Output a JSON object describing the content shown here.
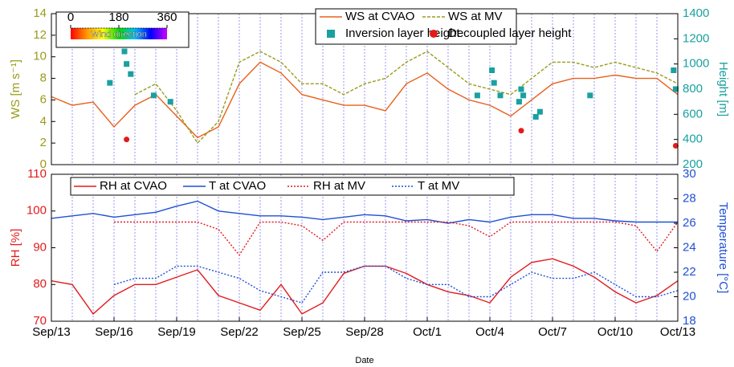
{
  "chart_data": [
    {
      "type": "line",
      "ylabel": "WS [m s⁻¹]",
      "y2label": "Height [m]",
      "ycolor": "#9b9b1b",
      "y2color": "#1aa0a0",
      "xlim": [
        0,
        30
      ],
      "ylim": [
        0,
        14
      ],
      "yticks": [
        0,
        2,
        4,
        6,
        8,
        10,
        12,
        14
      ],
      "y2lim": [
        200,
        1400
      ],
      "y2ticks": [
        200,
        400,
        600,
        800,
        1000,
        1200,
        1400
      ],
      "xgrid": [
        1,
        2,
        3,
        4,
        5,
        6,
        7,
        8,
        9,
        10,
        11,
        12,
        13,
        14,
        15,
        16,
        17,
        18,
        19,
        20,
        21,
        22,
        23,
        24,
        25,
        26,
        27,
        28,
        29
      ],
      "legend": "upper right",
      "colorbar": {
        "label": "Wind direction",
        "lim": [
          0,
          360
        ],
        "ticks": [
          0,
          180,
          360
        ]
      },
      "x": [
        0,
        1,
        2,
        3,
        4,
        5,
        6,
        7,
        8,
        9,
        10,
        11,
        12,
        13,
        14,
        15,
        16,
        17,
        18,
        19,
        20,
        21,
        22,
        23,
        24,
        25,
        26,
        27,
        28,
        29,
        30
      ],
      "series": [
        {
          "name": "WS at CVAO",
          "color": "#e8601c",
          "style": "solid",
          "values": [
            6.3,
            5.5,
            5.8,
            3.5,
            5.5,
            6.5,
            4.5,
            2.5,
            3.5,
            7.5,
            9.5,
            8.5,
            6.5,
            6,
            5.5,
            5.5,
            5,
            7.5,
            8.5,
            7,
            6,
            5.5,
            4.5,
            6,
            7.5,
            8,
            8,
            8.3,
            8,
            8,
            6.5
          ]
        },
        {
          "name": "WS at MV",
          "color": "#9b9b1b",
          "style": "dashed",
          "values": [
            null,
            null,
            null,
            null,
            6.5,
            7.5,
            5,
            2,
            4,
            9.5,
            10.5,
            9.5,
            7.5,
            7.5,
            6.5,
            7.5,
            8,
            9.5,
            10.5,
            9,
            7.5,
            7,
            6.5,
            8,
            9.5,
            9.5,
            9,
            9.5,
            9,
            8.5,
            7.5
          ]
        },
        {
          "name": "Inversion layer height",
          "color": "#1aa0a0",
          "mode": "markers",
          "marker": "square",
          "axis": "y2",
          "x": [
            2.8,
            3.5,
            3.6,
            3.8,
            4.9,
            5.7,
            20.4,
            21.1,
            21.2,
            21.5,
            22.4,
            22.5,
            22.6,
            23.2,
            23.4,
            25.8,
            29.8,
            29.9
          ],
          "values": [
            850,
            1100,
            1000,
            920,
            750,
            700,
            750,
            950,
            850,
            750,
            700,
            800,
            750,
            580,
            620,
            750,
            950,
            800
          ]
        },
        {
          "name": "Decoupled layer height",
          "color": "#e31a1c",
          "mode": "markers",
          "marker": "circle",
          "axis": "y2",
          "x": [
            3.6,
            22.5,
            29.9
          ],
          "values": [
            400,
            470,
            350
          ]
        }
      ]
    },
    {
      "type": "line",
      "ylabel": "RH [%]",
      "y2label": "Temperature [°C]",
      "xlabel": "Date",
      "ycolor": "#e31a1c",
      "y2color": "#1f4fd6",
      "xlim": [
        0,
        30
      ],
      "xticks": [
        {
          "value": 0,
          "label": "Sep/13"
        },
        {
          "value": 3,
          "label": "Sep/16"
        },
        {
          "value": 6,
          "label": "Sep/19"
        },
        {
          "value": 9,
          "label": "Sep/22"
        },
        {
          "value": 12,
          "label": "Sep/25"
        },
        {
          "value": 15,
          "label": "Sep/28"
        },
        {
          "value": 18,
          "label": "Oct/1"
        },
        {
          "value": 21,
          "label": "Oct/4"
        },
        {
          "value": 24,
          "label": "Oct/7"
        },
        {
          "value": 27,
          "label": "Oct/10"
        },
        {
          "value": 30,
          "label": "Oct/13"
        }
      ],
      "ylim": [
        70,
        110
      ],
      "yticks": [
        70,
        80,
        90,
        100,
        110
      ],
      "y2lim": [
        18,
        30
      ],
      "y2ticks": [
        18,
        20,
        22,
        24,
        26,
        28,
        30
      ],
      "xgrid": [
        1,
        2,
        3,
        4,
        5,
        6,
        7,
        8,
        9,
        10,
        11,
        12,
        13,
        14,
        15,
        16,
        17,
        18,
        19,
        20,
        21,
        22,
        23,
        24,
        25,
        26,
        27,
        28,
        29
      ],
      "legend": "top",
      "x": [
        0,
        1,
        2,
        3,
        4,
        5,
        6,
        7,
        8,
        9,
        10,
        11,
        12,
        13,
        14,
        15,
        16,
        17,
        18,
        19,
        20,
        21,
        22,
        23,
        24,
        25,
        26,
        27,
        28,
        29,
        30
      ],
      "series": [
        {
          "name": "RH at CVAO",
          "color": "#e31a1c",
          "style": "solid",
          "values": [
            81,
            80,
            72,
            77,
            80,
            80,
            82,
            84,
            77,
            75,
            73,
            80,
            72,
            75,
            83,
            85,
            85,
            83,
            80,
            78,
            77,
            75,
            82,
            86,
            87,
            85,
            82,
            78,
            75,
            77,
            81
          ]
        },
        {
          "name": "T at CVAO",
          "color": "#1f4fd6",
          "style": "solid",
          "axis": "y2",
          "values": [
            26.4,
            26.6,
            26.8,
            26.5,
            26.7,
            26.9,
            27.4,
            27.8,
            27,
            26.8,
            26.6,
            26.6,
            26.5,
            26.3,
            26.5,
            26.7,
            26.6,
            26.2,
            26.3,
            26,
            26.3,
            26.1,
            26.5,
            26.7,
            26.7,
            26.4,
            26.4,
            26.2,
            26.1,
            26.1,
            26.1
          ]
        },
        {
          "name": "RH at MV",
          "color": "#e31a1c",
          "style": "dotted",
          "values": [
            null,
            null,
            null,
            97,
            97,
            97,
            97,
            97,
            95,
            88,
            97,
            97,
            96,
            92,
            97,
            97,
            97,
            97,
            97,
            97,
            96,
            93,
            97,
            97,
            97,
            97,
            97,
            97,
            96,
            89,
            97
          ]
        },
        {
          "name": "T at MV",
          "color": "#1f4fd6",
          "style": "dotted",
          "axis": "y2",
          "values": [
            null,
            null,
            null,
            21,
            21.5,
            21.5,
            22.5,
            22.5,
            22,
            21.5,
            20.5,
            20,
            19.5,
            22,
            22,
            22.5,
            22.5,
            21.5,
            21,
            21,
            20,
            20,
            21,
            22,
            21.5,
            21.5,
            22,
            21,
            20,
            20,
            20.5
          ]
        }
      ]
    }
  ]
}
